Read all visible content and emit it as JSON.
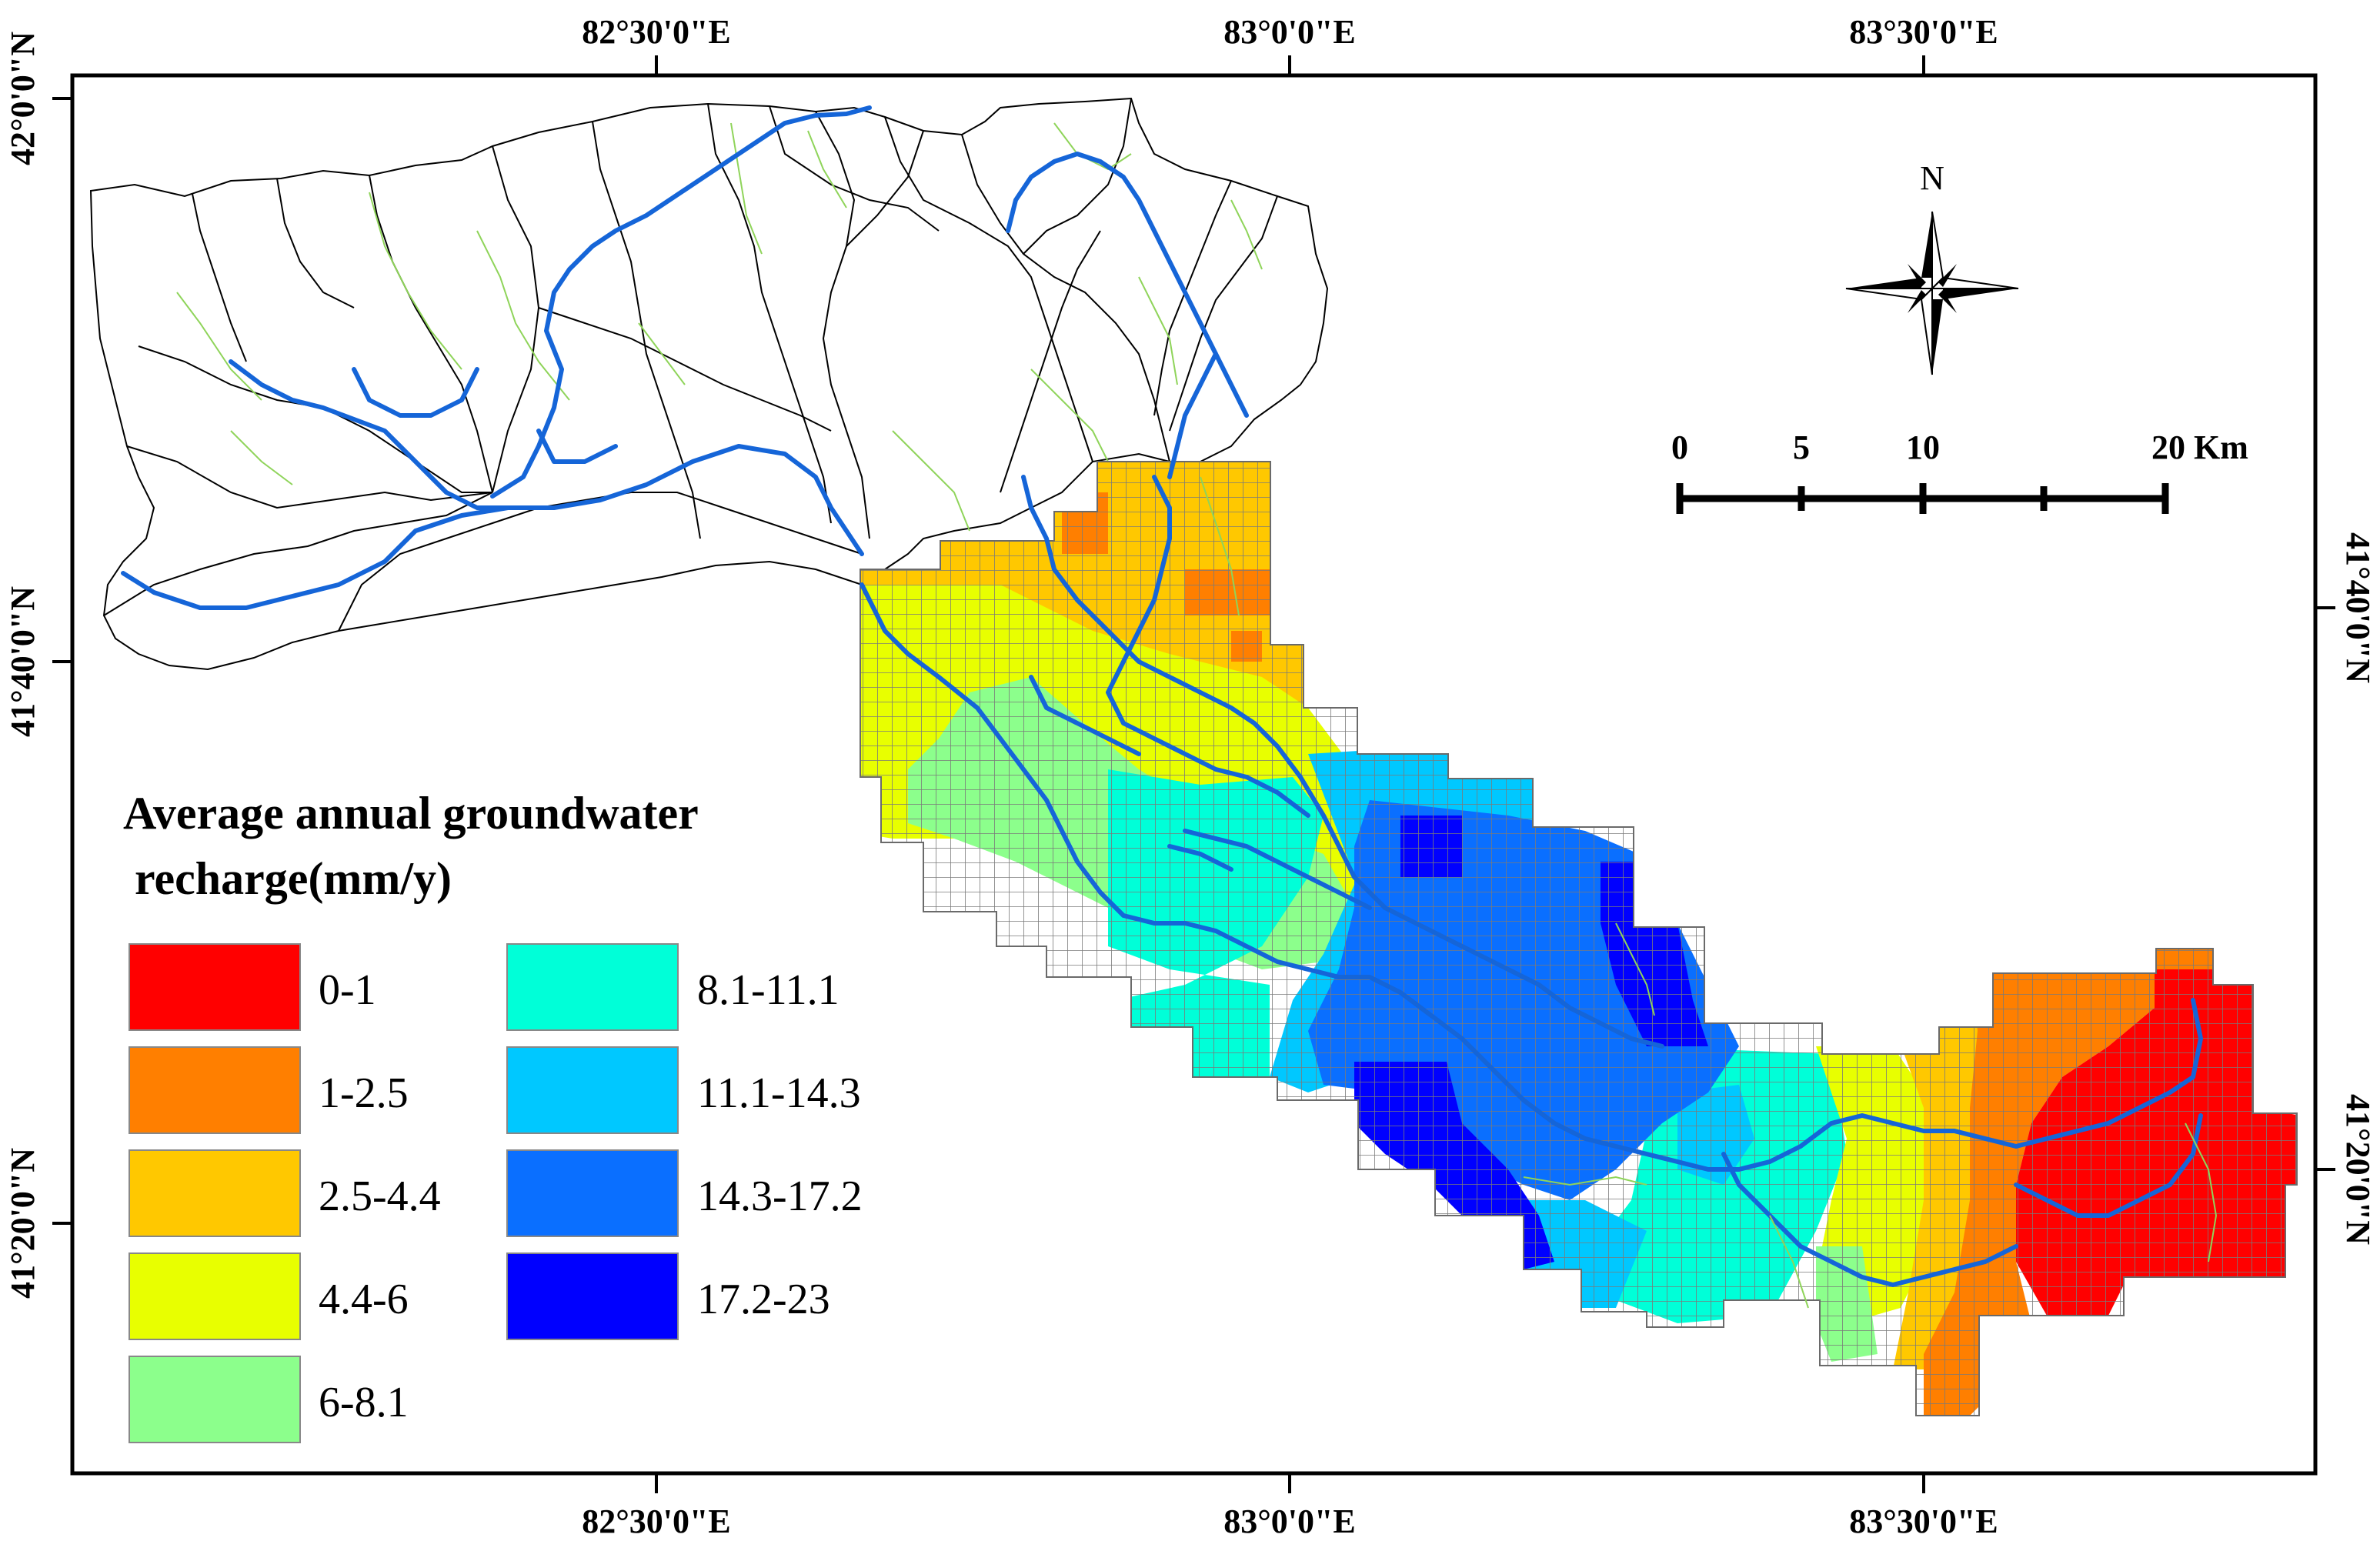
{
  "map": {
    "coords_top": [
      "82°30'0\"E",
      "83°0'0\"E",
      "83°30'0\"E"
    ],
    "coords_bottom": [
      "82°30'0\"E",
      "83°0'0\"E",
      "83°30'0\"E"
    ],
    "coords_left": [
      "42°0'0\"N",
      "41°40'0\"N",
      "41°20'0\"N"
    ],
    "coords_right": [
      "41°40'0\"N",
      "41°20'0\"N"
    ]
  },
  "north_arrow": {
    "label": "N"
  },
  "scale_bar": {
    "labels": [
      "0",
      "5",
      "10",
      "20 Km"
    ]
  },
  "legend": {
    "title_line1": "Average annual groundwater",
    "title_line2": " recharge(mm/y)",
    "classes": [
      {
        "label": "0-1",
        "color": "#ff0000"
      },
      {
        "label": "1-2.5",
        "color": "#ff7f00"
      },
      {
        "label": "2.5-4.4",
        "color": "#ffc800"
      },
      {
        "label": "4.4-6",
        "color": "#e8ff00"
      },
      {
        "label": "6-8.1",
        "color": "#8cff8c"
      },
      {
        "label": "8.1-11.1",
        "color": "#00ffd8"
      },
      {
        "label": "11.1-14.3",
        "color": "#00c8ff"
      },
      {
        "label": "14.3-17.2",
        "color": "#0a6fff"
      },
      {
        "label": "17.2-23",
        "color": "#0000ff"
      }
    ]
  },
  "colors": {
    "river": "#1565d8",
    "stream": "#8fd45a",
    "boundary": "#000000",
    "grid": "#7a7a7a"
  }
}
